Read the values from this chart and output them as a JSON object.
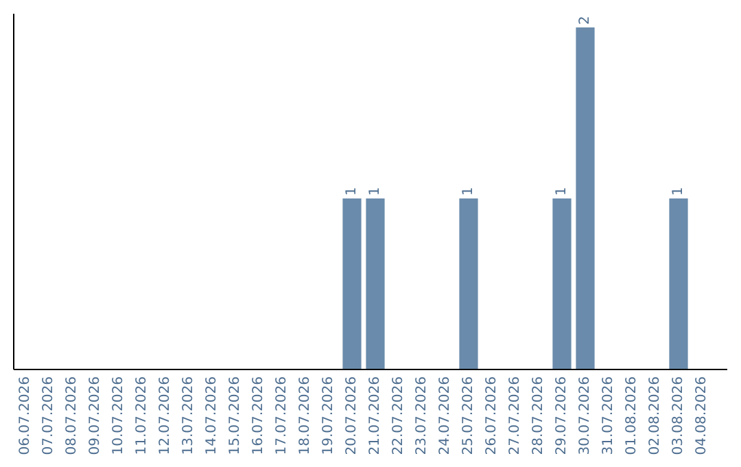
{
  "chart_data": {
    "type": "bar",
    "categories": [
      "06.07.2026",
      "07.07.2026",
      "08.07.2026",
      "09.07.2026",
      "10.07.2026",
      "11.07.2026",
      "12.07.2026",
      "13.07.2026",
      "14.07.2026",
      "15.07.2026",
      "16.07.2026",
      "17.07.2026",
      "18.07.2026",
      "19.07.2026",
      "20.07.2026",
      "21.07.2026",
      "22.07.2026",
      "23.07.2026",
      "24.07.2026",
      "25.07.2026",
      "26.07.2026",
      "27.07.2026",
      "28.07.2026",
      "29.07.2026",
      "30.07.2026",
      "31.07.2026",
      "01.08.2026",
      "02.08.2026",
      "03.08.2026",
      "04.08.2026"
    ],
    "values": [
      null,
      null,
      null,
      null,
      null,
      null,
      null,
      null,
      null,
      null,
      null,
      null,
      null,
      null,
      1,
      1,
      null,
      null,
      null,
      1,
      null,
      null,
      null,
      1,
      2,
      null,
      null,
      null,
      1,
      null
    ],
    "data_labels": true,
    "color": "#6a8bab"
  }
}
